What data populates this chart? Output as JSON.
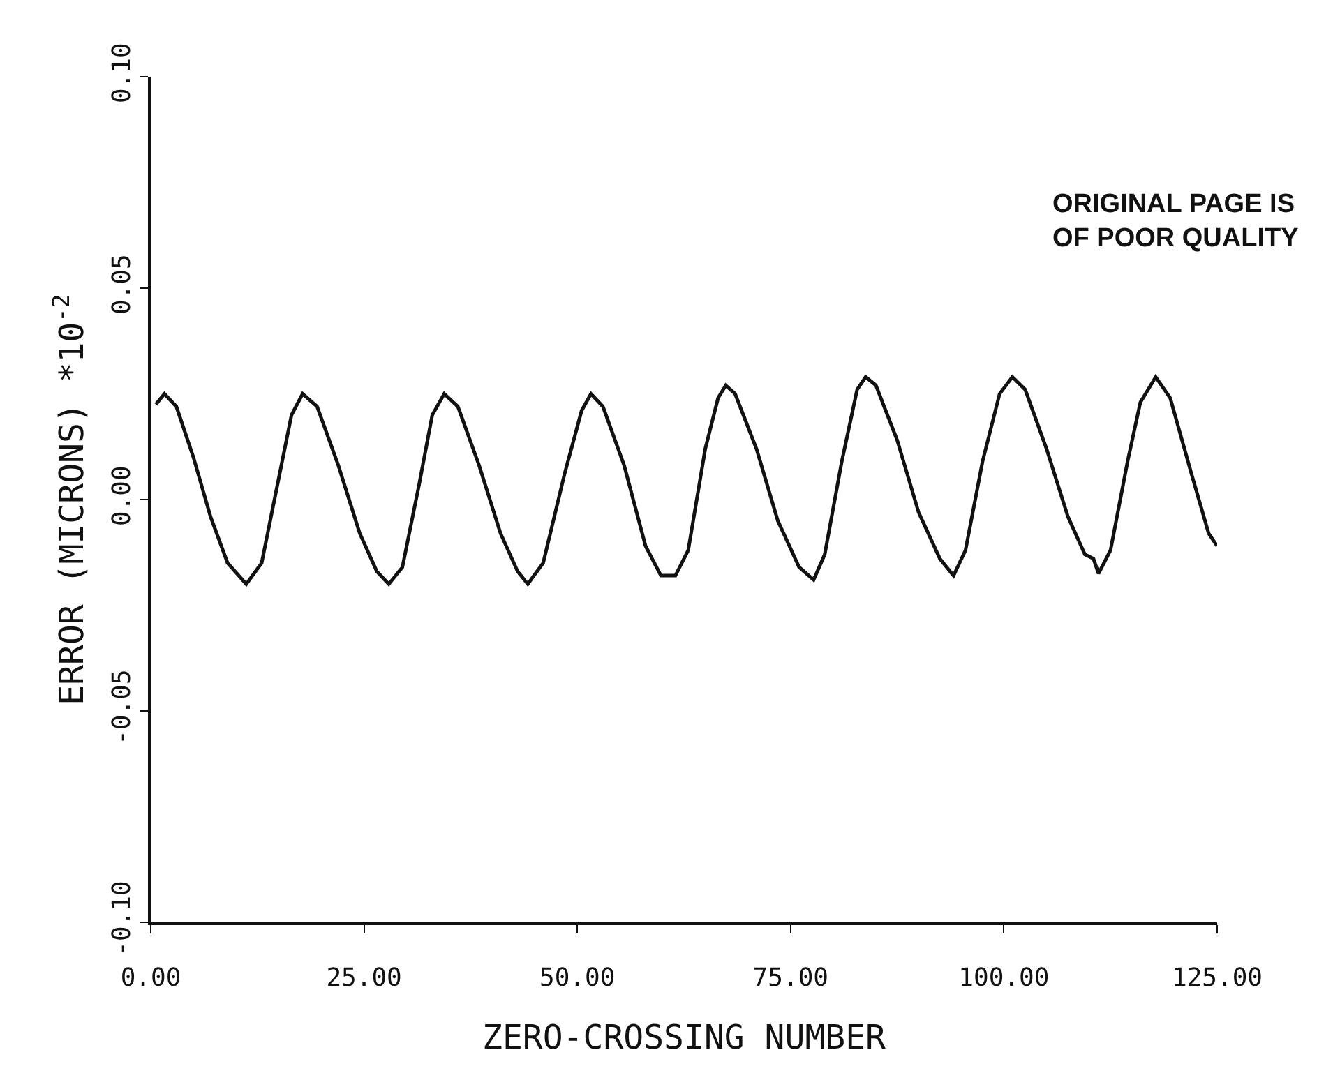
{
  "chart_data": {
    "type": "line",
    "xlabel": "ZERO-CROSSING NUMBER",
    "ylabel": "ERROR (MICRONS) *10$^{-2}$",
    "annotations": [
      "ORIGINAL PAGE IS\nOF POOR QUALITY"
    ],
    "x": [
      0.6,
      1.6,
      3,
      5,
      7,
      9,
      11.2,
      13,
      15,
      16.5,
      17.8,
      19.5,
      22,
      24.5,
      26.5,
      27.9,
      29.5,
      31.5,
      33,
      34.4,
      36,
      38.5,
      41,
      43,
      44.2,
      46,
      48.5,
      50.5,
      51.6,
      53,
      55.5,
      58,
      59.8,
      61.5,
      63,
      65,
      66.5,
      67.4,
      68.5,
      71,
      73.5,
      76,
      77.7,
      79,
      81,
      82.8,
      83.8,
      85,
      87.5,
      90,
      92.5,
      94.1,
      95.5,
      97.5,
      99.5,
      101,
      102.5,
      105,
      107.5,
      109.5,
      110.5,
      111.1,
      112.5,
      114.5,
      116,
      117.8,
      119.5,
      122,
      124,
      125
    ],
    "series": [
      {
        "color": "#111111",
        "values": [
          0.0225,
          0.025,
          0.022,
          0.01,
          -0.004,
          -0.015,
          -0.02,
          -0.015,
          0.005,
          0.02,
          0.025,
          0.022,
          0.008,
          -0.008,
          -0.017,
          -0.02,
          -0.016,
          0.004,
          0.02,
          0.025,
          0.022,
          0.008,
          -0.008,
          -0.017,
          -0.02,
          -0.015,
          0.006,
          0.021,
          0.025,
          0.022,
          0.008,
          -0.011,
          -0.018,
          -0.018,
          -0.012,
          0.012,
          0.024,
          0.027,
          0.025,
          0.012,
          -0.005,
          -0.016,
          -0.019,
          -0.013,
          0.009,
          0.026,
          0.029,
          0.027,
          0.014,
          -0.003,
          -0.014,
          -0.018,
          -0.012,
          0.009,
          0.025,
          0.029,
          0.026,
          0.012,
          -0.004,
          -0.013,
          -0.014,
          -0.0175,
          -0.012,
          0.009,
          0.023,
          0.029,
          0.024,
          0.006,
          -0.008,
          -0.011
        ]
      }
    ],
    "xlim": [
      0,
      125
    ],
    "xticks": [
      {
        "value": 0,
        "label": "0.00"
      },
      {
        "value": 25,
        "label": "25.00"
      },
      {
        "value": 50,
        "label": "50.00"
      },
      {
        "value": 75,
        "label": "75.00"
      },
      {
        "value": 100,
        "label": "100.00"
      },
      {
        "value": 125,
        "label": "125.00"
      }
    ],
    "ylim": [
      -0.1,
      0.1
    ],
    "yticks": [
      {
        "value": -0.1,
        "label": "-0.10"
      },
      {
        "value": -0.05,
        "label": "-0.05"
      },
      {
        "value": 0,
        "label": "0.00"
      },
      {
        "value": 0.05,
        "label": "0.05"
      },
      {
        "value": 0.1,
        "label": "0.10"
      }
    ],
    "marker": "none",
    "line_style": "solid"
  }
}
